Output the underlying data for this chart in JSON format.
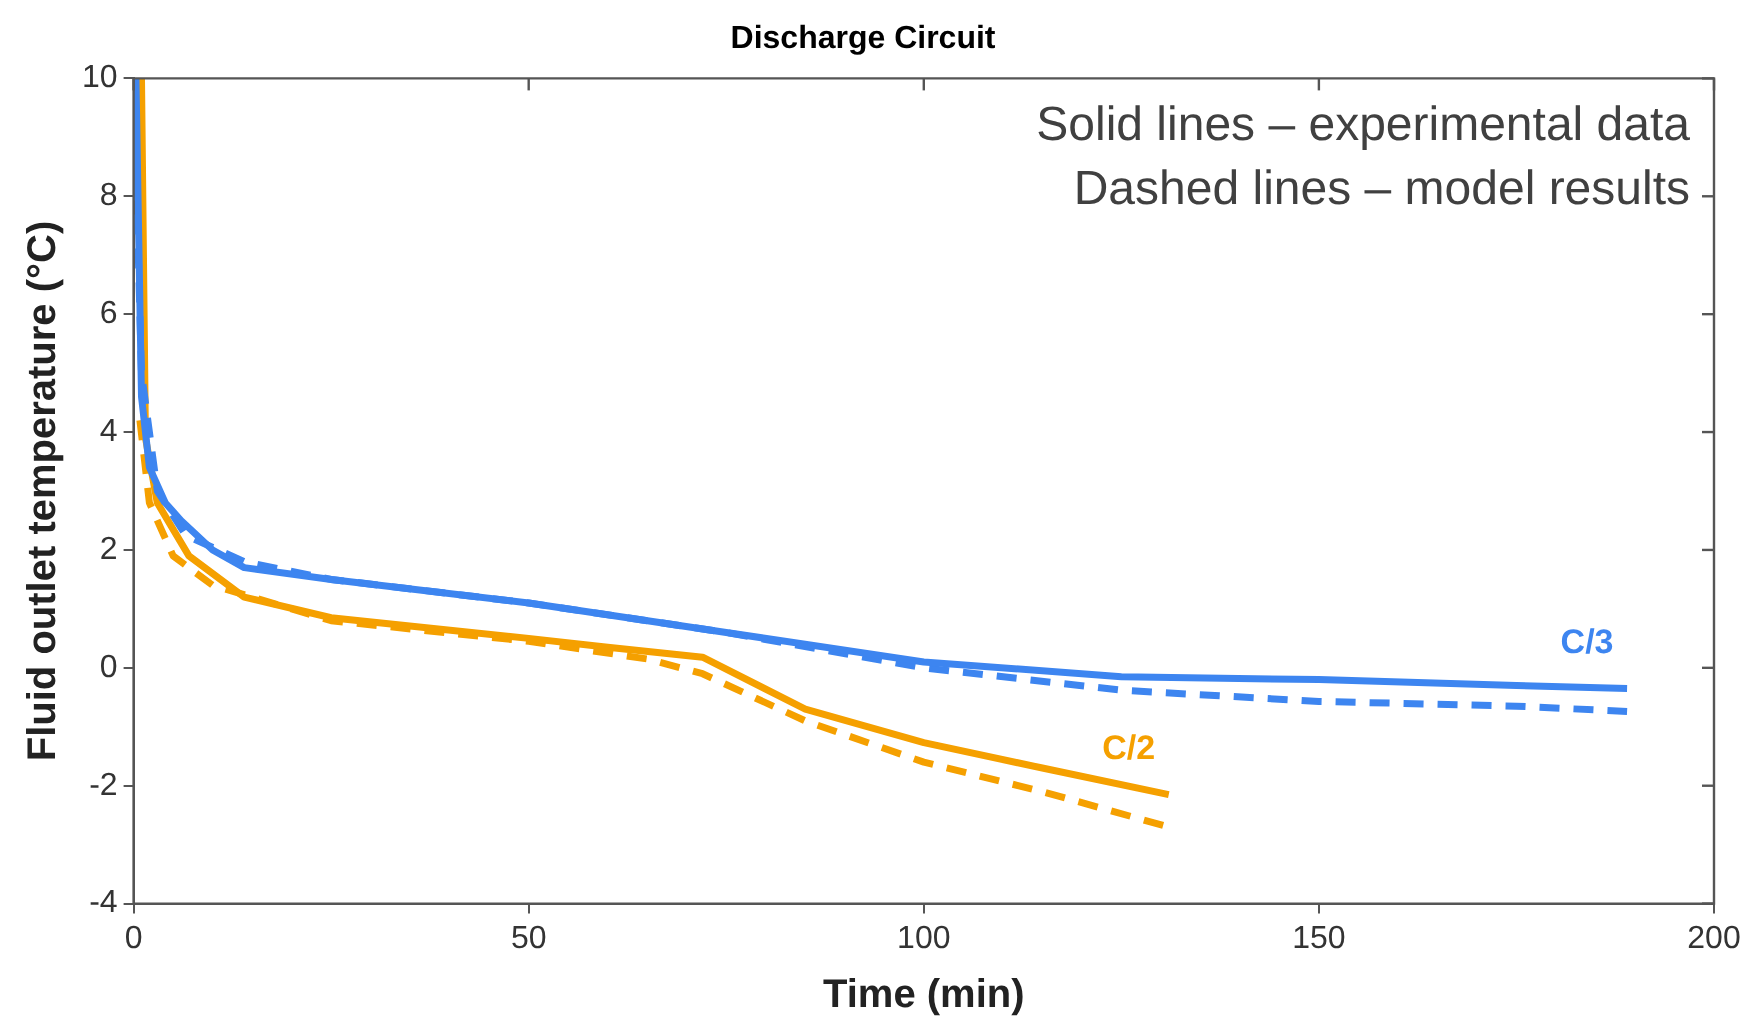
{
  "chart_data": {
    "type": "line",
    "title": "Discharge Circuit",
    "xlabel": "Time (min)",
    "ylabel": "Fluid outlet temperature (°C)",
    "xlim": [
      0,
      200
    ],
    "xticks": [
      0,
      50,
      100,
      150,
      200
    ],
    "ylim": [
      -4,
      10
    ],
    "yticks": [
      -4,
      -2,
      0,
      2,
      4,
      6,
      8,
      10
    ],
    "grid": false,
    "legend": false,
    "annotations": [
      "Solid lines – experimental data",
      "Dashed lines – model results"
    ],
    "series": [
      {
        "name": "C/3",
        "color": "#3d85f0",
        "line_style": "solid",
        "x": [
          0.3,
          1,
          2,
          4,
          6,
          10,
          14,
          25,
          50,
          75,
          100,
          125,
          150,
          175,
          189
        ],
        "values": [
          10,
          4.6,
          3.4,
          2.8,
          2.5,
          2.0,
          1.7,
          1.5,
          1.1,
          0.6,
          0.1,
          -0.15,
          -0.2,
          -0.3,
          -0.35
        ]
      },
      {
        "color": "#3d85f0",
        "line_style": "dashed",
        "x": [
          0,
          1,
          3,
          6.6,
          14,
          25,
          50,
          75,
          100,
          125,
          150,
          175,
          189
        ],
        "values": [
          10,
          5,
          3,
          2.25,
          1.8,
          1.5,
          1.1,
          0.6,
          0.0,
          -0.38,
          -0.57,
          -0.65,
          -0.74
        ]
      },
      {
        "name": "C/2",
        "color": "#f5a000",
        "line_style": "solid",
        "x": [
          1,
          1.5,
          3,
          7,
          14,
          25,
          50,
          60,
          72,
          85,
          100,
          115,
          131
        ],
        "values": [
          10,
          3.9,
          2.8,
          1.9,
          1.2,
          0.85,
          0.5,
          0.35,
          0.18,
          -0.7,
          -1.27,
          -1.7,
          -2.15
        ]
      },
      {
        "color": "#f5a000",
        "line_style": "dashed",
        "x": [
          0.8,
          2,
          5,
          10,
          25,
          50,
          65,
          72,
          85,
          100,
          115,
          131
        ],
        "values": [
          4.2,
          2.8,
          1.9,
          1.4,
          0.8,
          0.45,
          0.15,
          -0.1,
          -0.9,
          -1.6,
          -2.1,
          -2.7
        ]
      }
    ]
  }
}
